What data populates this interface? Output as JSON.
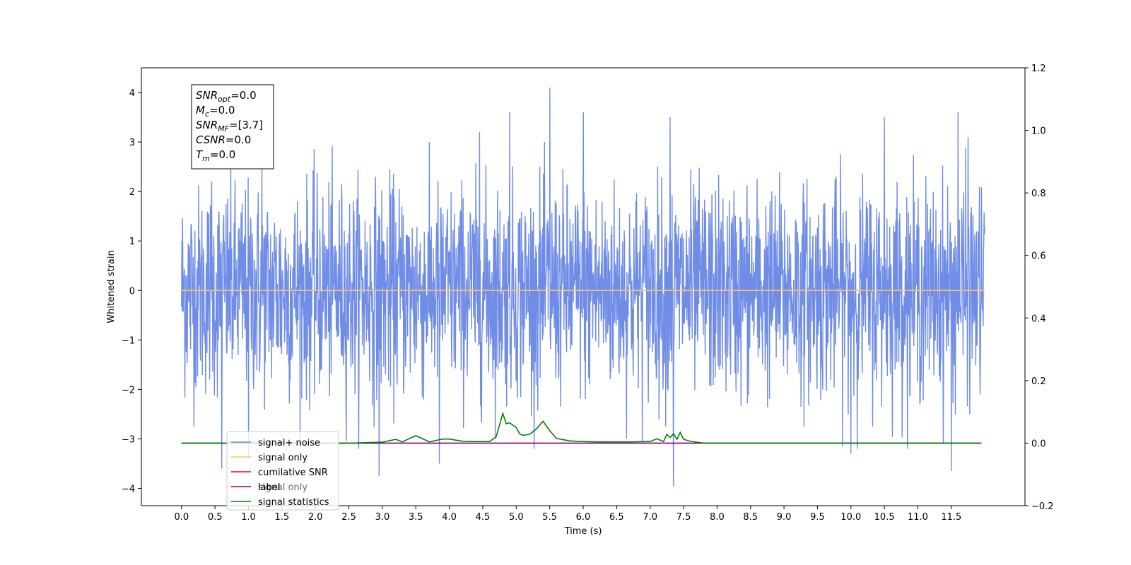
{
  "chart_data": {
    "type": "line",
    "title": "",
    "xlabel": "Time (s)",
    "ylabel": "Whitened strain",
    "xlim": [
      -0.6,
      12.6
    ],
    "ylim": [
      -4.35,
      4.5
    ],
    "y2lim": [
      -0.2,
      1.2
    ],
    "x_ticks": [
      0.0,
      0.5,
      1.0,
      1.5,
      2.0,
      2.5,
      3.0,
      3.5,
      4.0,
      4.5,
      5.0,
      5.5,
      6.0,
      6.5,
      7.0,
      7.5,
      8.0,
      8.5,
      9.0,
      9.5,
      10.0,
      10.5,
      11.0,
      11.5
    ],
    "x_tick_labels": [
      "0.0",
      "0.5",
      "1.0",
      "1.5",
      "2.0",
      "2.5",
      "3.0",
      "3.5",
      "4.0",
      "4.5",
      "5.0",
      "5.5",
      "6.0",
      "6.5",
      "7.0",
      "7.5",
      "8.0",
      "8.5",
      "9.0",
      "9.5",
      "10.0",
      "10.5",
      "11.0",
      "11.5"
    ],
    "y_ticks": [
      -4,
      -3,
      -2,
      -1,
      0,
      1,
      2,
      3,
      4
    ],
    "y_tick_labels": [
      "−4",
      "−3",
      "−2",
      "−1",
      "0",
      "1",
      "2",
      "3",
      "4"
    ],
    "y2_ticks": [
      -0.2,
      0.0,
      0.2,
      0.4,
      0.6,
      0.8,
      1.0,
      1.2
    ],
    "y2_tick_labels": [
      "−0.2",
      "0.0",
      "0.2",
      "0.4",
      "0.6",
      "0.8",
      "1.0",
      "1.2"
    ],
    "series": [
      {
        "name": "signal+ noise",
        "axis": "left",
        "color": "#6f8ce6",
        "kind": "noise",
        "x_range": [
          0.0,
          12.0
        ],
        "typical_envelope": [
          -2.5,
          2.5
        ],
        "peaks": [
          [
            0.45,
            2.2
          ],
          [
            1.2,
            2.5
          ],
          [
            4.45,
            3.2
          ],
          [
            4.9,
            3.6
          ],
          [
            5.5,
            4.1
          ],
          [
            6.0,
            3.6
          ],
          [
            7.3,
            3.5
          ],
          [
            10.5,
            3.5
          ],
          [
            11.6,
            3.6
          ],
          [
            11.75,
            3.1
          ]
        ],
        "troughs": [
          [
            0.6,
            -3.6
          ],
          [
            1.0,
            -3.4
          ],
          [
            2.95,
            -3.75
          ],
          [
            3.85,
            -3.5
          ],
          [
            7.35,
            -3.95
          ],
          [
            10.0,
            -3.3
          ],
          [
            11.5,
            -3.65
          ]
        ]
      },
      {
        "name": "signal only",
        "axis": "left",
        "color": "#ffc266",
        "x": [
          0.0,
          12.0
        ],
        "y": [
          0.0,
          0.0
        ]
      },
      {
        "name": "cumilative SNR",
        "axis": "right",
        "color": "#ff0000",
        "x": [],
        "y": []
      },
      {
        "name": "label",
        "axis": "right",
        "color": "#800080",
        "x": [
          0.0,
          7.1,
          7.1,
          11.95
        ],
        "y": [
          0.0,
          0.0,
          0.0,
          0.0
        ]
      },
      {
        "name": "signal statistics",
        "axis": "right",
        "color": "#008000",
        "x": [
          0.0,
          2.5,
          3.0,
          3.2,
          3.3,
          3.5,
          3.7,
          3.9,
          4.0,
          4.2,
          4.4,
          4.6,
          4.7,
          4.8,
          4.85,
          4.9,
          5.0,
          5.05,
          5.1,
          5.2,
          5.3,
          5.4,
          5.5,
          5.6,
          5.8,
          6.0,
          6.2,
          6.4,
          6.7,
          7.0,
          7.1,
          7.2,
          7.25,
          7.3,
          7.35,
          7.4,
          7.45,
          7.5,
          7.6,
          7.8,
          8.0,
          11.95
        ],
        "y": [
          0.0,
          0.0,
          0.003,
          0.012,
          0.004,
          0.024,
          0.004,
          0.013,
          0.013,
          0.006,
          0.005,
          0.005,
          0.02,
          0.095,
          0.062,
          0.065,
          0.05,
          0.03,
          0.025,
          0.028,
          0.045,
          0.07,
          0.04,
          0.015,
          0.007,
          0.005,
          0.004,
          0.004,
          0.004,
          0.005,
          0.014,
          0.005,
          0.028,
          0.018,
          0.03,
          0.012,
          0.034,
          0.012,
          0.006,
          0.0,
          0.0,
          0.0
        ]
      }
    ],
    "legend": {
      "placement": "lower-left"
    }
  },
  "info_box": {
    "lines": [
      {
        "base": "SNR",
        "sub": "opt",
        "value": "=0.0"
      },
      {
        "base": "M",
        "sub": "c",
        "value": "=0.0"
      },
      {
        "base": "SNR",
        "sub": "MF",
        "value": "=[3.7]"
      },
      {
        "base": "CSNR",
        "sub": "",
        "value": "=0.0"
      },
      {
        "base": "T",
        "sub": "m",
        "value": "=0.0"
      }
    ]
  },
  "legend_overlap_text": "signal only"
}
